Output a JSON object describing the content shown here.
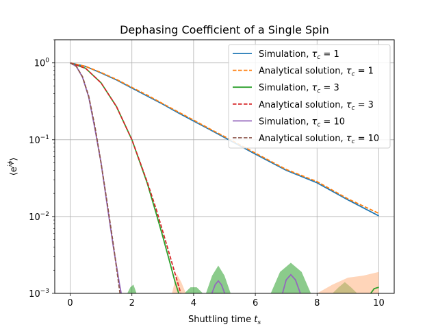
{
  "chart_data": {
    "type": "line",
    "title": "Dephasing Coefficient of a Single Spin",
    "xlabel": "Shuttling time t_s",
    "xlabel_parts": {
      "text": "Shuttling time ",
      "var": "t",
      "sub": "s"
    },
    "ylabel": "⟨e^{iφ}⟩",
    "ylabel_parts": {
      "open": "⟨",
      "base": "e",
      "sup": "iϕ",
      "close": "⟩"
    },
    "xlim": [
      -0.5,
      10.5
    ],
    "ylim": [
      0.001,
      2
    ],
    "yscale": "log",
    "grid": true,
    "legend_position": "top-right",
    "x_ticks": [
      0,
      2,
      4,
      6,
      8,
      10
    ],
    "x_tick_labels": [
      "0",
      "2",
      "4",
      "6",
      "8",
      "10"
    ],
    "y_ticks": [
      0.001,
      0.01,
      0.1,
      1
    ],
    "y_tick_labels": [
      {
        "base": "10",
        "exp": "−3"
      },
      {
        "base": "10",
        "exp": "−2"
      },
      {
        "base": "10",
        "exp": "−1"
      },
      {
        "base": "10",
        "exp": "0"
      }
    ],
    "series": [
      {
        "name": "Simulation, τc = 1",
        "label_prefix": "Simulation, ",
        "tau": "1",
        "color": "#1f77b4",
        "style": "solid",
        "x": [
          0,
          0.5,
          1,
          1.5,
          2,
          2.5,
          3,
          3.5,
          4,
          4.5,
          5,
          6,
          7,
          8,
          9,
          10
        ],
        "y": [
          1.0,
          0.9,
          0.74,
          0.6,
          0.47,
          0.37,
          0.29,
          0.224,
          0.175,
          0.137,
          0.107,
          0.065,
          0.04,
          0.0275,
          0.0165,
          0.0102
        ]
      },
      {
        "name": "Analytical solution, τc = 1",
        "label_prefix": "Analytical solution, ",
        "tau": "1",
        "color": "#ff7f0e",
        "style": "dashed",
        "x": [
          0,
          0.5,
          1,
          1.5,
          2,
          2.5,
          3,
          3.5,
          4,
          4.5,
          5,
          6,
          7,
          8,
          9,
          10
        ],
        "y": [
          1.0,
          0.9,
          0.75,
          0.61,
          0.48,
          0.38,
          0.295,
          0.23,
          0.18,
          0.14,
          0.11,
          0.067,
          0.041,
          0.0285,
          0.017,
          0.011
        ]
      },
      {
        "name": "Simulation, τc = 3",
        "label_prefix": "Simulation, ",
        "tau": "3",
        "color": "#2ca02c",
        "style": "solid",
        "x": [
          0,
          0.5,
          1,
          1.5,
          2,
          2.5,
          2.8,
          3.0,
          3.2,
          3.4,
          3.5,
          3.6
        ],
        "y": [
          1.0,
          0.85,
          0.55,
          0.27,
          0.1,
          0.027,
          0.0105,
          0.0055,
          0.0028,
          0.0014,
          0.00105,
          0.0008
        ]
      },
      {
        "name": "Analytical solution, τc = 3",
        "label_prefix": "Analytical solution, ",
        "tau": "3",
        "color": "#d62728",
        "style": "dashed",
        "x": [
          0,
          0.5,
          1,
          1.5,
          2,
          2.5,
          2.8,
          3.0,
          3.2,
          3.4,
          3.6,
          3.8
        ],
        "y": [
          1.0,
          0.85,
          0.55,
          0.27,
          0.1,
          0.028,
          0.012,
          0.0064,
          0.0034,
          0.0018,
          0.00095,
          0.0005
        ]
      },
      {
        "name": "Simulation, τc = 10",
        "label_prefix": "Simulation, ",
        "tau": "10",
        "color": "#9467bd",
        "style": "solid",
        "x": [
          0,
          0.2,
          0.4,
          0.6,
          0.8,
          1.0,
          1.2,
          1.4,
          1.6,
          1.7
        ],
        "y": [
          1.0,
          0.9,
          0.65,
          0.36,
          0.14,
          0.05,
          0.014,
          0.004,
          0.0013,
          0.0008
        ]
      },
      {
        "name": "Analytical solution, τc = 10",
        "label_prefix": "Analytical solution, ",
        "tau": "10",
        "color": "#8c564b",
        "style": "dashed",
        "x": [
          0,
          0.2,
          0.4,
          0.6,
          0.8,
          1.0,
          1.2,
          1.4,
          1.6,
          1.75
        ],
        "y": [
          1.0,
          0.9,
          0.66,
          0.37,
          0.15,
          0.05,
          0.015,
          0.0043,
          0.0011,
          0.0004
        ]
      }
    ],
    "noise_bumps": [
      {
        "series": "Simulation, τc = 10",
        "x": [
          4.55,
          4.7,
          4.8,
          4.9,
          5.05
        ],
        "y": [
          0.0009,
          0.0013,
          0.00145,
          0.0013,
          0.0009
        ]
      },
      {
        "series": "Simulation, τc = 10",
        "x": [
          6.85,
          7.0,
          7.15,
          7.3,
          7.5
        ],
        "y": [
          0.0009,
          0.0015,
          0.00175,
          0.0015,
          0.0009
        ]
      },
      {
        "series": "Simulation, τc = 3",
        "x": [
          9.7,
          9.85,
          10.0
        ],
        "y": [
          0.00095,
          0.00115,
          0.0012
        ]
      }
    ],
    "uncertainty_bands": [
      {
        "color": "#2ca02c",
        "x": [
          1.85,
          1.95,
          2.05,
          2.15
        ],
        "y": [
          0.0009,
          0.0012,
          0.0013,
          0.0009
        ]
      },
      {
        "color": "#2ca02c",
        "x": [
          3.7,
          3.9,
          4.1,
          4.3
        ],
        "y": [
          0.0009,
          0.0012,
          0.0012,
          0.0009
        ]
      },
      {
        "color": "#2ca02c",
        "x": [
          4.4,
          4.6,
          4.8,
          5.0,
          5.2
        ],
        "y": [
          0.0009,
          0.0017,
          0.0023,
          0.0017,
          0.0009
        ]
      },
      {
        "color": "#2ca02c",
        "x": [
          6.5,
          6.8,
          7.15,
          7.5,
          7.8
        ],
        "y": [
          0.0009,
          0.0019,
          0.0025,
          0.0019,
          0.0009
        ]
      },
      {
        "color": "#2ca02c",
        "x": [
          8.5,
          8.7,
          8.9,
          9.1,
          9.3
        ],
        "y": [
          0.0009,
          0.0012,
          0.0014,
          0.0012,
          0.0009
        ]
      },
      {
        "color": "#ffb27f",
        "x": [
          3.3,
          3.45,
          3.6,
          3.75
        ],
        "y": [
          0.0009,
          0.0018,
          0.0014,
          0.0009
        ]
      },
      {
        "color": "#ffb27f",
        "x": [
          8.0,
          8.5,
          9.0,
          9.5,
          10.0
        ],
        "y": [
          0.0009,
          0.0013,
          0.0016,
          0.0017,
          0.0019
        ]
      }
    ]
  }
}
